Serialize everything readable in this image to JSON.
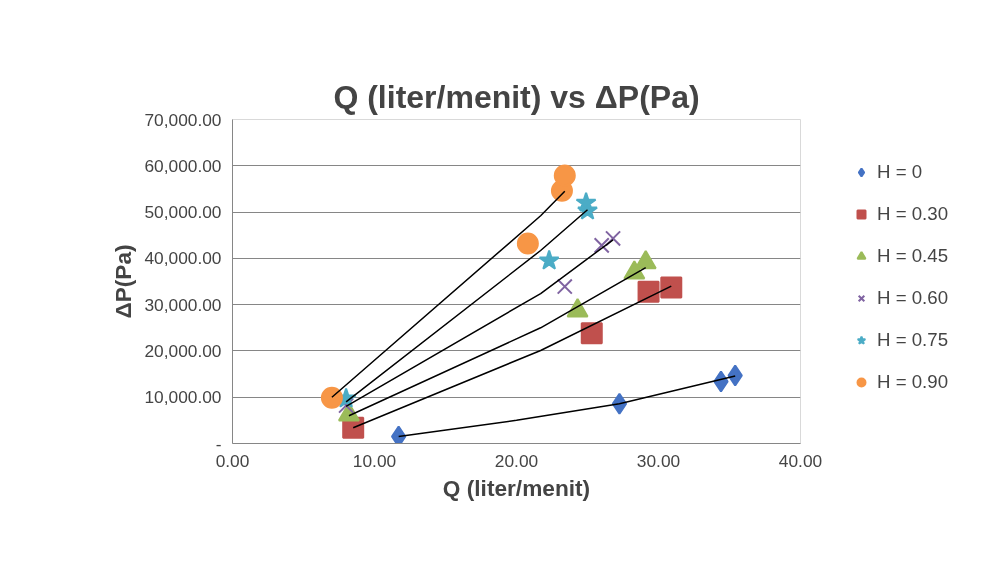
{
  "chart_data": {
    "type": "scatter",
    "title": "Q (liter/menit) vs ΔP(Pa)",
    "xlabel": "Q (liter/menit)",
    "ylabel": "ΔP(Pa)",
    "xlim": [
      0,
      40
    ],
    "xticks": [
      {
        "value": 0,
        "label": "0.00"
      },
      {
        "value": 10,
        "label": "10.00"
      },
      {
        "value": 20,
        "label": "20.00"
      },
      {
        "value": 30,
        "label": "30.00"
      },
      {
        "value": 40,
        "label": "40.00"
      }
    ],
    "ylim": [
      0,
      70000
    ],
    "yticks": [
      {
        "value": 0,
        "label": "-"
      },
      {
        "value": 10000,
        "label": "10,000.00"
      },
      {
        "value": 20000,
        "label": "20,000.00"
      },
      {
        "value": 30000,
        "label": "30,000.00"
      },
      {
        "value": 40000,
        "label": "40,000.00"
      },
      {
        "value": 50000,
        "label": "50,000.00"
      },
      {
        "value": 60000,
        "label": "60,000.00"
      },
      {
        "value": 70000,
        "label": "70,000.00"
      }
    ],
    "grid": "y",
    "legend": "right",
    "series": [
      {
        "name": "H = 0",
        "color": "#4472c4",
        "marker": "diamond",
        "x": [
          11.7,
          27.25,
          34.4,
          35.4
        ],
        "values": [
          1500,
          8600,
          13400,
          14700
        ]
      },
      {
        "name": "H = 0.30",
        "color": "#c0504d",
        "marker": "square",
        "x": [
          8.5,
          25.3,
          29.3,
          30.9
        ],
        "values": [
          3400,
          23800,
          32800,
          33700
        ]
      },
      {
        "name": "H = 0.45",
        "color": "#9bbb59",
        "marker": "triangle",
        "x": [
          8.2,
          24.3,
          28.3,
          29.1
        ],
        "values": [
          6200,
          28700,
          36900,
          39100
        ]
      },
      {
        "name": "H = 0.60",
        "color": "#8064a2",
        "marker": "cross",
        "x": [
          8.0,
          23.4,
          26.0,
          26.8
        ],
        "values": [
          8200,
          33900,
          42800,
          44300
        ]
      },
      {
        "name": "H = 0.75",
        "color": "#4bacc6",
        "marker": "star",
        "x": [
          8.0,
          22.3,
          24.9,
          25.0
        ],
        "values": [
          9700,
          39500,
          52000,
          50300
        ]
      },
      {
        "name": "H = 0.90",
        "color": "#f79646",
        "marker": "circle",
        "x": [
          7.0,
          20.8,
          23.2,
          23.4
        ],
        "values": [
          9900,
          43200,
          54600,
          57900
        ]
      },
      {
        "type": "line",
        "color": "#000000",
        "x": [
          11.7,
          20,
          27.25,
          35.4
        ],
        "values": [
          1500,
          5000,
          8600,
          14600
        ]
      },
      {
        "type": "line",
        "color": "#000000",
        "x": [
          8.5,
          21.7,
          30.9
        ],
        "values": [
          3400,
          20100,
          34000
        ]
      },
      {
        "type": "line",
        "color": "#000000",
        "x": [
          8.2,
          21.7,
          29.1
        ],
        "values": [
          6000,
          25000,
          38000
        ]
      },
      {
        "type": "line",
        "color": "#000000",
        "x": [
          8.0,
          21.7,
          26.8
        ],
        "values": [
          8000,
          32400,
          44000
        ]
      },
      {
        "type": "line",
        "color": "#000000",
        "x": [
          8.0,
          21.7,
          25.0
        ],
        "values": [
          9000,
          41700,
          50500
        ]
      },
      {
        "type": "line",
        "color": "#000000",
        "x": [
          7.0,
          21.7,
          23.4
        ],
        "values": [
          10000,
          49200,
          54500
        ]
      }
    ]
  }
}
